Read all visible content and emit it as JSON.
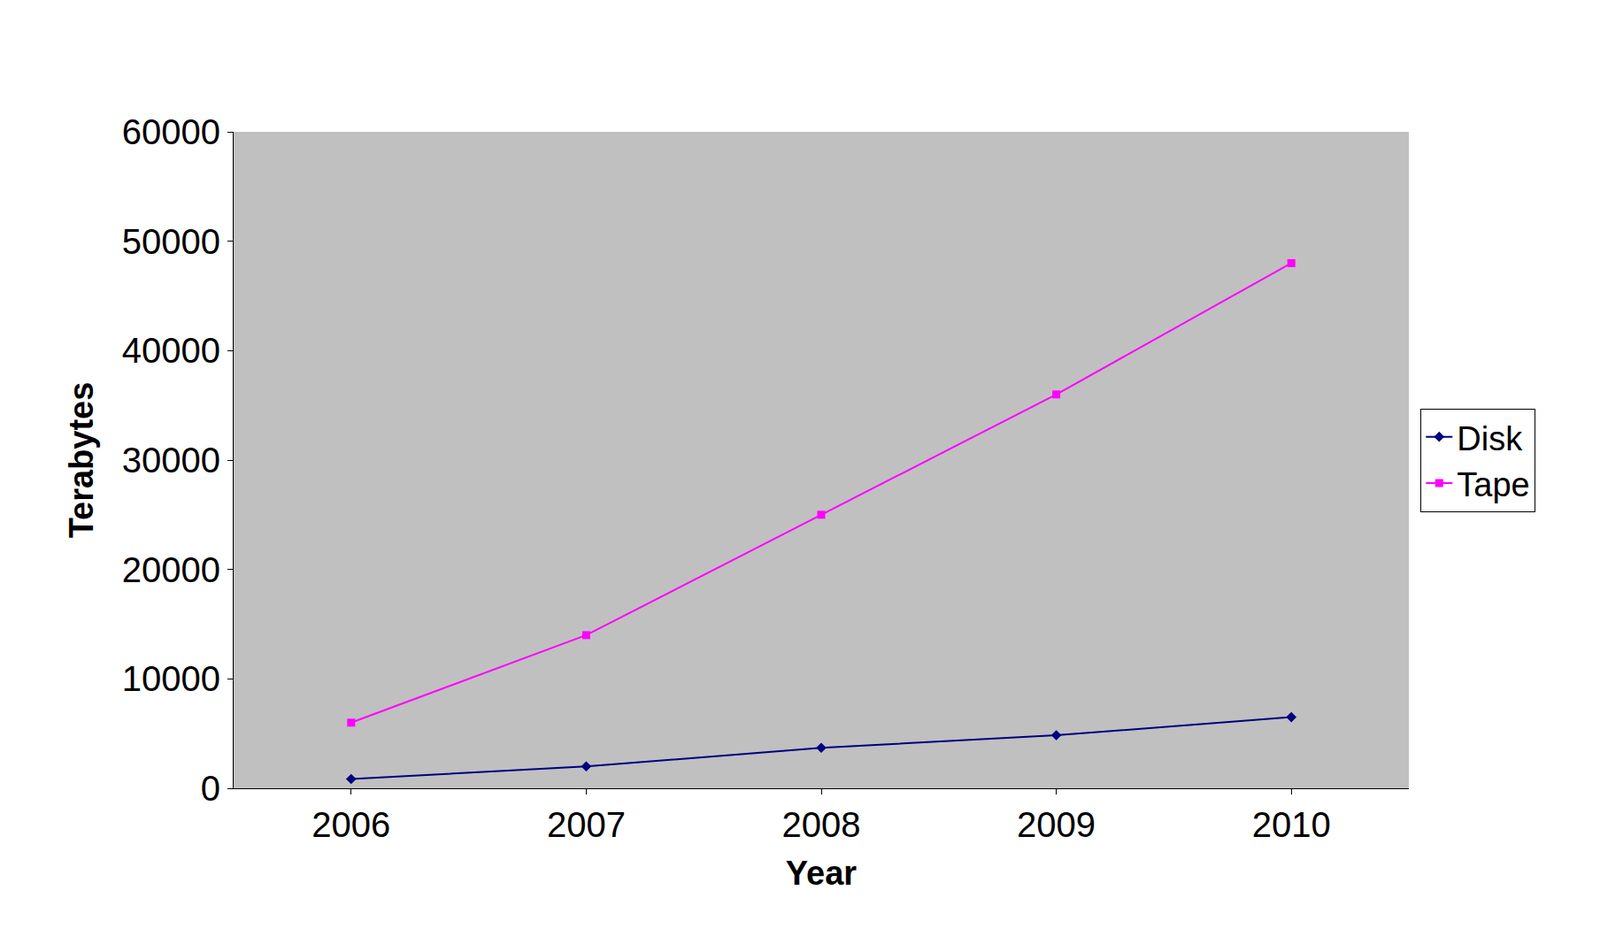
{
  "chart_data": {
    "type": "line",
    "x_label": "Year",
    "y_label": "Terabytes",
    "categories": [
      "2006",
      "2007",
      "2008",
      "2009",
      "2010"
    ],
    "series": [
      {
        "name": "Disk",
        "color": "#000080",
        "marker": "diamond",
        "values": [
          850,
          2000,
          3700,
          4850,
          6500
        ]
      },
      {
        "name": "Tape",
        "color": "#ff00ff",
        "marker": "square",
        "values": [
          6000,
          14000,
          25000,
          36000,
          48000
        ]
      }
    ],
    "ylim": [
      0,
      60000
    ],
    "yticks": [
      0,
      10000,
      20000,
      30000,
      40000,
      50000,
      60000
    ],
    "grid": false,
    "legend": "right"
  }
}
